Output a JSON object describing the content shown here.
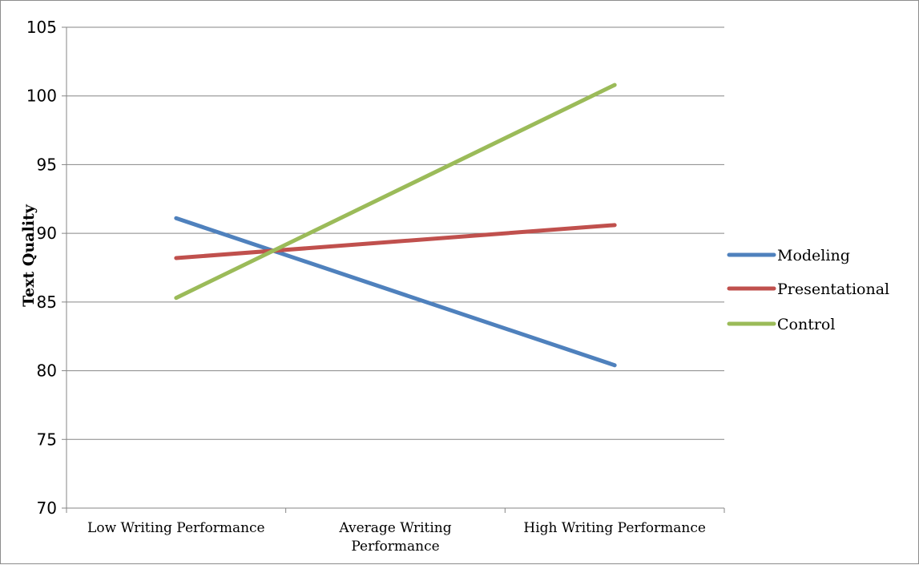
{
  "chart_data": {
    "type": "line",
    "title": "",
    "xlabel": "",
    "ylabel": "Text Quality",
    "categories": [
      [
        "Low Writing Performance"
      ],
      [
        "Average Writing",
        "Performance"
      ],
      [
        "High Writing Performance"
      ]
    ],
    "ylim": [
      70,
      105
    ],
    "yticks": [
      70,
      75,
      80,
      85,
      90,
      95,
      100,
      105
    ],
    "grid": true,
    "legend_position": "right",
    "series": [
      {
        "name": "Modeling",
        "color": "#4f81bd",
        "x": [
          0,
          2
        ],
        "values": [
          91.1,
          80.4
        ]
      },
      {
        "name": "Presentational",
        "color": "#c0504d",
        "x": [
          0,
          2
        ],
        "values": [
          88.2,
          90.6
        ]
      },
      {
        "name": "Control",
        "color": "#9bbb59",
        "x": [
          0,
          2
        ],
        "values": [
          85.3,
          100.8
        ]
      }
    ]
  }
}
